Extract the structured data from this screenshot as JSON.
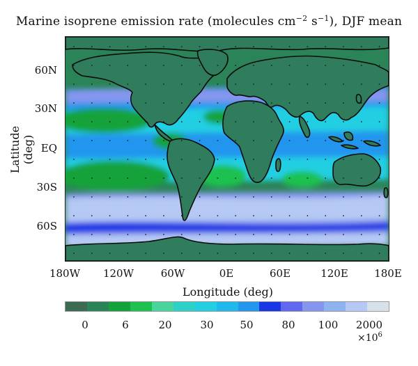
{
  "title": {
    "text_main": "Marine isoprene emission rate (molecules cm",
    "exp1": "−2",
    "text_mid": " s",
    "exp2": "−1",
    "text_end": "), DJF mean"
  },
  "axes": {
    "ylabel": "Latitude (deg)",
    "xlabel": "Longitude (deg)",
    "lat_ticks": [
      "60N",
      "30N",
      "EQ",
      "30S",
      "60S"
    ],
    "lon_ticks": [
      "180W",
      "120W",
      "60W",
      "0E",
      "60E",
      "120E",
      "180E"
    ]
  },
  "colorbar": {
    "colors": [
      "#3c6b52",
      "#2b8457",
      "#14a23a",
      "#1dc150",
      "#49d59b",
      "#2ed1c8",
      "#22cfe2",
      "#1fb9ee",
      "#2496ee",
      "#1a37e6",
      "#5f68ee",
      "#8596ee",
      "#8fb3f0",
      "#b6c9f4",
      "#d7e1ea"
    ],
    "labels": [
      "0",
      "6",
      "20",
      "30",
      "50",
      "80",
      "100",
      "2000"
    ],
    "multiplier_base": "×10",
    "multiplier_exp": "6"
  },
  "map_colors": {
    "land": "#2f7d5d",
    "ocean_low": "#2b8457",
    "ocean_green": "#14a23a",
    "ocean_bright_green": "#1dc150",
    "ocean_teal": "#49d59b",
    "ocean_cyan": "#22cfe2",
    "ocean_blue": "#2496ee",
    "ocean_deep_blue": "#1a37e6",
    "ocean_purple": "#8596ee",
    "ocean_pale": "#b6c9f4",
    "coast": "#0b0b0b"
  }
}
